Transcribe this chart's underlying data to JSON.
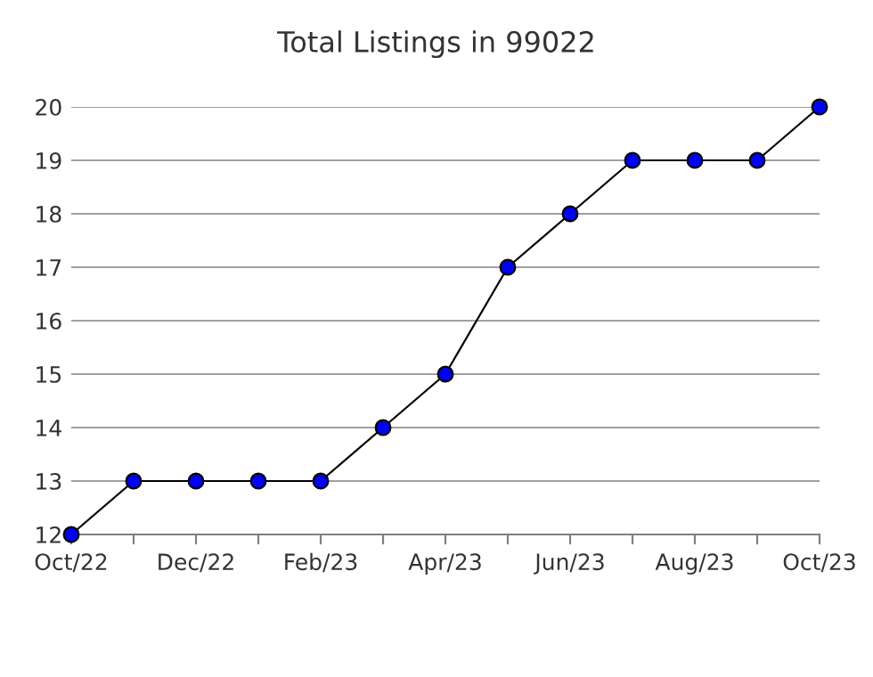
{
  "chart_data": {
    "type": "line",
    "title": "Total Listings in 99022",
    "categories": [
      "Oct/22",
      null,
      "Dec/22",
      null,
      "Feb/23",
      null,
      "Apr/23",
      null,
      "Jun/23",
      null,
      "Aug/23",
      null,
      "Oct/23"
    ],
    "series": [
      {
        "color": "#0000ff",
        "values": [
          12,
          13,
          13,
          13,
          13,
          14,
          15,
          17,
          18,
          19,
          19,
          19,
          20
        ]
      }
    ],
    "ylim": [
      12,
      20
    ],
    "yticks": [
      12,
      13,
      14,
      15,
      16,
      17,
      18,
      19,
      20
    ],
    "grid": "y",
    "marker": "circle",
    "line_style": "solid"
  }
}
